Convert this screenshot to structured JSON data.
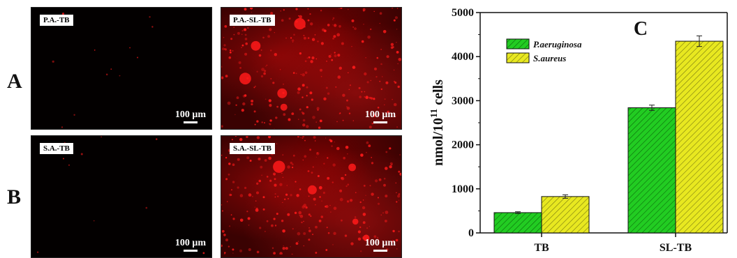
{
  "row_letters": {
    "a": "A",
    "b": "B"
  },
  "panels": {
    "pa_tb": {
      "label": "P.A.-TB",
      "scale": "100 μm"
    },
    "pa_sl_tb": {
      "label": "P.A.-SL-TB",
      "scale": "100 μm"
    },
    "sa_tb": {
      "label": "S.A.-TB",
      "scale": "100 μm"
    },
    "sa_sl_tb": {
      "label": "S.A.-SL-TB",
      "scale": "100 μm"
    }
  },
  "colors": {
    "p_aeruginosa": "#22cc22",
    "s_aureus": "#e8e820",
    "fluorescence": "#ff1a1a"
  },
  "chart_data": {
    "type": "bar",
    "panel_label": "C",
    "categories": [
      "TB",
      "SL-TB"
    ],
    "series": [
      {
        "name": "P.aeruginosa",
        "values": [
          460,
          2840
        ],
        "errors": [
          20,
          60
        ]
      },
      {
        "name": "S.aureus",
        "values": [
          825,
          4350
        ],
        "errors": [
          40,
          120
        ]
      }
    ],
    "ylabel": "nmol/10",
    "ylabel_sup": "11",
    "ylabel_suffix": " cells",
    "ylim": [
      0,
      5000
    ],
    "yticks": [
      "0",
      "1000",
      "2000",
      "3000",
      "4000",
      "5000"
    ],
    "legend_position": "top-left",
    "grid": false
  }
}
